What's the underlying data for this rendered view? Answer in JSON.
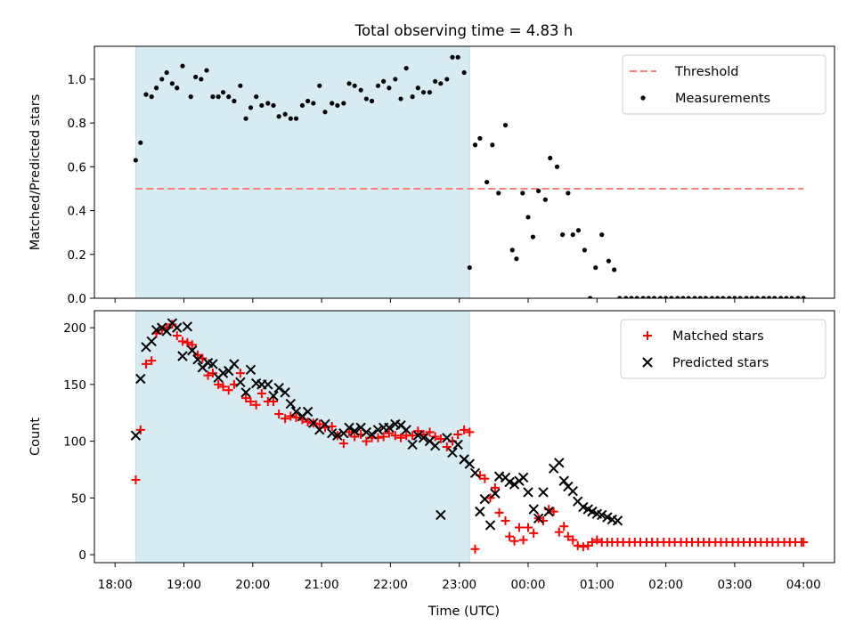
{
  "chart_data": {
    "title": "Total observing time = 4.83 h",
    "xlabel": "Time (UTC)",
    "xticks": [
      "18:00",
      "19:00",
      "20:00",
      "21:00",
      "22:00",
      "23:00",
      "00:00",
      "01:00",
      "02:00",
      "03:00",
      "04:00"
    ],
    "xlim_hours": [
      17.7,
      28.45
    ],
    "observing_window_hours": [
      18.3,
      23.15
    ],
    "colors": {
      "window": "#add8e6",
      "threshold": "#ff7f7f",
      "matched": "#ff0000",
      "predicted": "#000000",
      "measurement": "#000000"
    },
    "panels": [
      {
        "type": "scatter",
        "ylabel": "Matched/Predicted stars",
        "ylim": [
          0,
          1.15
        ],
        "yticks": [
          "0.0",
          "0.2",
          "0.4",
          "0.6",
          "0.8",
          "1.0"
        ],
        "grid": false,
        "legend": {
          "position": "top-right",
          "entries": [
            "Threshold",
            "Measurements"
          ]
        },
        "threshold": {
          "name": "Threshold",
          "value": 0.5,
          "style": "dashed"
        },
        "series": [
          {
            "name": "Measurements",
            "marker": "dot",
            "x": [
              18.3,
              18.37,
              18.45,
              18.53,
              18.6,
              18.68,
              18.75,
              18.83,
              18.9,
              18.98,
              19.1,
              19.17,
              19.25,
              19.33,
              19.42,
              19.5,
              19.57,
              19.65,
              19.73,
              19.82,
              19.9,
              19.97,
              20.05,
              20.13,
              20.22,
              20.3,
              20.38,
              20.47,
              20.55,
              20.63,
              20.72,
              20.8,
              20.88,
              20.97,
              21.05,
              21.15,
              21.23,
              21.32,
              21.4,
              21.48,
              21.57,
              21.65,
              21.73,
              21.82,
              21.9,
              21.98,
              22.07,
              22.15,
              22.23,
              22.32,
              22.4,
              22.48,
              22.57,
              22.65,
              22.73,
              22.82,
              22.9,
              22.98,
              23.07,
              23.15,
              23.23,
              23.3,
              23.4,
              23.48,
              23.57,
              23.67,
              23.77,
              23.83,
              23.92,
              24.0,
              24.07,
              24.15,
              24.25,
              24.32,
              24.42,
              24.5,
              24.58,
              24.65,
              24.73,
              24.82,
              24.9,
              24.98,
              25.07,
              25.17,
              25.25,
              25.33,
              25.42,
              25.5,
              25.58,
              25.67,
              25.75,
              25.83,
              25.92,
              26.0,
              26.08,
              26.17,
              26.25,
              26.33,
              26.42,
              26.5,
              26.58,
              26.67,
              26.75,
              26.83,
              26.92,
              27.0,
              27.08,
              27.17,
              27.25,
              27.33,
              27.42,
              27.5,
              27.58,
              27.67,
              27.75,
              27.83,
              27.92,
              28.0
            ],
            "y": [
              0.63,
              0.71,
              0.93,
              0.92,
              0.96,
              1.0,
              1.03,
              0.98,
              0.96,
              1.06,
              0.92,
              1.01,
              1.0,
              1.04,
              0.92,
              0.92,
              0.94,
              0.92,
              0.9,
              0.97,
              0.82,
              0.87,
              0.92,
              0.88,
              0.89,
              0.88,
              0.83,
              0.84,
              0.82,
              0.82,
              0.88,
              0.9,
              0.89,
              0.97,
              0.85,
              0.89,
              0.88,
              0.89,
              0.98,
              0.97,
              0.95,
              0.91,
              0.9,
              0.97,
              0.99,
              0.96,
              1.0,
              0.91,
              1.05,
              0.92,
              0.96,
              0.94,
              0.94,
              0.99,
              0.98,
              1.0,
              1.1,
              1.1,
              1.03,
              0.14,
              0.7,
              0.73,
              0.53,
              0.7,
              0.48,
              0.79,
              0.22,
              0.18,
              0.48,
              0.37,
              0.28,
              0.49,
              0.45,
              0.64,
              0.6,
              0.29,
              0.48,
              0.29,
              0.31,
              0.22,
              0.0,
              0.14,
              0.29,
              0.17,
              0.13,
              0.0,
              0.0,
              0.0,
              0.0,
              0.0,
              0.0,
              0.0,
              0.0,
              0.0,
              0.0,
              0.0,
              0.0,
              0.0,
              0.0,
              0.0,
              0.0,
              0.0,
              0.0,
              0.0,
              0.0,
              0.0,
              0.0,
              0.0,
              0.0,
              0.0,
              0.0,
              0.0,
              0.0,
              0.0,
              0.0,
              0.0,
              0.0,
              0.0
            ]
          }
        ]
      },
      {
        "type": "scatter",
        "ylabel": "Count",
        "ylim": [
          -7,
          215
        ],
        "yticks": [
          "0",
          "50",
          "100",
          "150",
          "200"
        ],
        "grid": false,
        "legend": {
          "position": "top-right",
          "entries": [
            "Matched stars",
            "Predicted stars"
          ]
        },
        "series": [
          {
            "name": "Matched stars",
            "marker": "plus",
            "x": [
              18.3,
              18.37,
              18.45,
              18.53,
              18.6,
              18.68,
              18.75,
              18.83,
              18.9,
              18.98,
              19.05,
              19.12,
              19.2,
              19.27,
              19.35,
              19.42,
              19.5,
              19.57,
              19.65,
              19.73,
              19.82,
              19.9,
              19.97,
              20.05,
              20.13,
              20.22,
              20.3,
              20.38,
              20.47,
              20.55,
              20.63,
              20.72,
              20.8,
              20.88,
              20.97,
              21.05,
              21.15,
              21.23,
              21.32,
              21.4,
              21.48,
              21.57,
              21.65,
              21.73,
              21.82,
              21.9,
              21.98,
              22.07,
              22.15,
              22.23,
              22.32,
              22.4,
              22.48,
              22.57,
              22.65,
              22.73,
              22.82,
              22.9,
              22.98,
              23.07,
              23.15,
              23.23,
              23.3,
              23.37,
              23.45,
              23.52,
              23.58,
              23.67,
              23.73,
              23.8,
              23.87,
              23.93,
              24.0,
              24.08,
              24.15,
              24.22,
              24.3,
              24.37,
              24.45,
              24.52,
              24.58,
              24.65,
              24.72,
              24.8,
              24.87,
              24.93,
              25.0,
              25.07,
              25.15,
              25.22,
              25.3,
              25.38,
              25.47,
              25.55,
              25.63,
              25.72,
              25.8,
              25.88,
              25.97,
              26.05,
              26.13,
              26.22,
              26.3,
              26.38,
              26.47,
              26.55,
              26.63,
              26.72,
              26.8,
              26.88,
              26.97,
              27.05,
              27.13,
              27.22,
              27.3,
              27.38,
              27.47,
              27.55,
              27.63,
              27.72,
              27.8,
              27.88,
              27.97,
              28.0
            ],
            "y": [
              66,
              110,
              168,
              171,
              195,
              198,
              200,
              203,
              193,
              188,
              187,
              185,
              176,
              173,
              158,
              160,
              150,
              148,
              145,
              150,
              160,
              138,
              135,
              132,
              142,
              135,
              135,
              124,
              120,
              122,
              121,
              119,
              117,
              116,
              115,
              112,
              113,
              105,
              98,
              108,
              104,
              106,
              100,
              103,
              103,
              104,
              107,
              105,
              103,
              105,
              105,
              109,
              106,
              108,
              104,
              102,
              95,
              100,
              106,
              110,
              108,
              5,
              70,
              67,
              50,
              59,
              37,
              30,
              16,
              12,
              24,
              13,
              24,
              19,
              32,
              30,
              40,
              38,
              20,
              25,
              16,
              13,
              8,
              7,
              8,
              11,
              13,
              11,
              11,
              11,
              11,
              11,
              11,
              11,
              11,
              11,
              11,
              11,
              11,
              11,
              11,
              11,
              11,
              11,
              11,
              11,
              11,
              11,
              11,
              11,
              11,
              11,
              11,
              11,
              11,
              11,
              11,
              11,
              11,
              11,
              11,
              11,
              11,
              11
            ]
          },
          {
            "name": "Predicted stars",
            "marker": "x",
            "x": [
              18.3,
              18.37,
              18.45,
              18.53,
              18.6,
              18.68,
              18.75,
              18.83,
              18.9,
              18.98,
              19.05,
              19.12,
              19.2,
              19.27,
              19.35,
              19.42,
              19.5,
              19.57,
              19.65,
              19.73,
              19.82,
              19.9,
              19.97,
              20.05,
              20.13,
              20.22,
              20.3,
              20.38,
              20.47,
              20.55,
              20.63,
              20.72,
              20.8,
              20.88,
              20.97,
              21.05,
              21.15,
              21.23,
              21.32,
              21.4,
              21.48,
              21.57,
              21.65,
              21.73,
              21.82,
              21.9,
              21.98,
              22.07,
              22.15,
              22.23,
              22.32,
              22.4,
              22.48,
              22.57,
              22.65,
              22.73,
              22.82,
              22.9,
              22.98,
              23.07,
              23.15,
              23.23,
              23.3,
              23.37,
              23.45,
              23.52,
              23.58,
              23.67,
              23.73,
              23.8,
              23.87,
              23.93,
              24.0,
              24.08,
              24.15,
              24.22,
              24.3,
              24.37,
              24.45,
              24.52,
              24.58,
              24.65,
              24.72,
              24.8,
              24.87,
              24.93,
              25.0,
              25.07,
              25.15,
              25.22,
              25.3
            ],
            "y": [
              105,
              155,
              183,
              188,
              198,
              200,
              197,
              204,
              200,
              175,
              201,
              180,
              172,
              165,
              169,
              168,
              156,
              160,
              162,
              168,
              152,
              143,
              163,
              151,
              150,
              150,
              140,
              147,
              143,
              133,
              126,
              122,
              126,
              116,
              110,
              115,
              107,
              105,
              107,
              112,
              109,
              112,
              108,
              106,
              110,
              112,
              112,
              115,
              114,
              110,
              97,
              105,
              103,
              100,
              96,
              35,
              103,
              90,
              97,
              84,
              80,
              72,
              38,
              49,
              26,
              54,
              69,
              68,
              64,
              62,
              65,
              68,
              55,
              40,
              32,
              55,
              38,
              76,
              81,
              65,
              60,
              56,
              47,
              42,
              40,
              38,
              36,
              35,
              33,
              31,
              30
            ]
          }
        ]
      }
    ]
  }
}
